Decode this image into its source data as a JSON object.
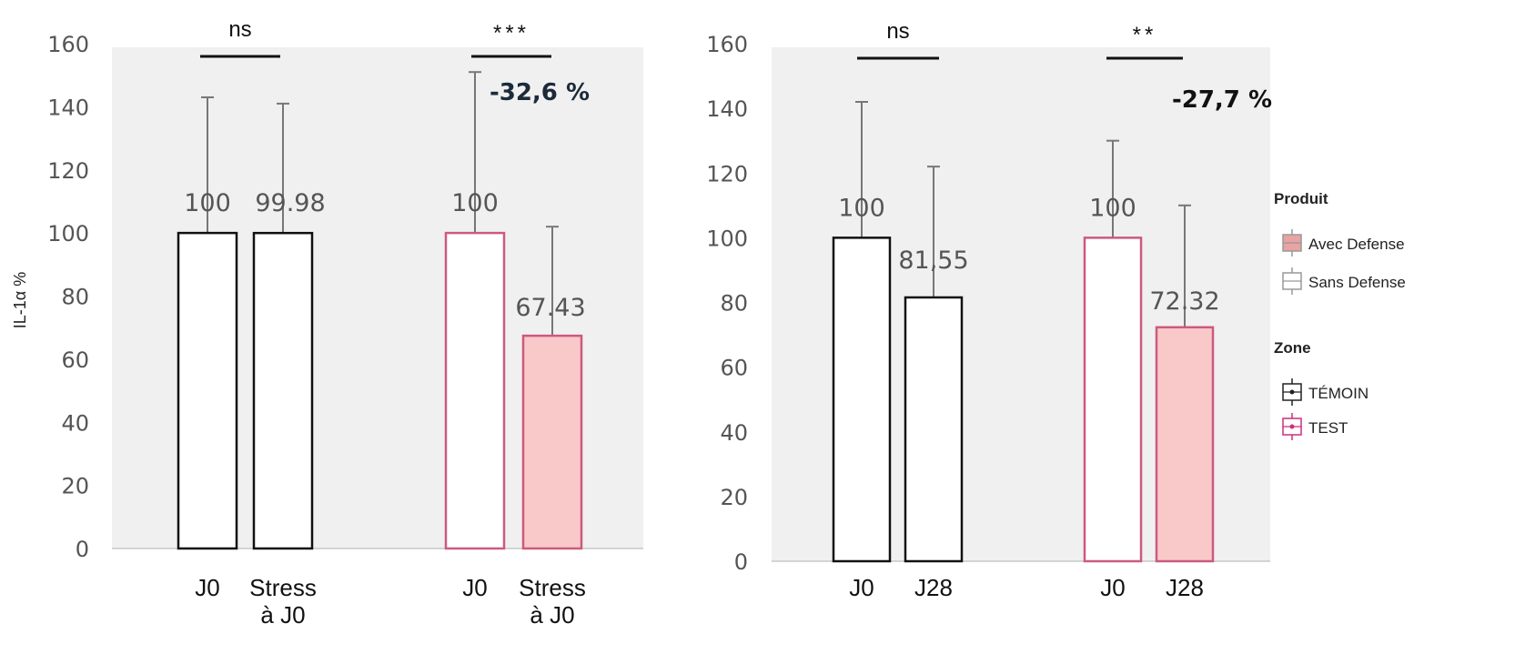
{
  "colors": {
    "panel_bg": "#f0f0f0",
    "bar_white": "#ffffff",
    "bar_pink": "#f9c9c9",
    "edge_black": "#111111",
    "edge_pink": "#cc5a7e",
    "pct_left": "#1c2a3a",
    "pct_right": "#111111"
  },
  "legend": {
    "produit_title": "Produit",
    "produit_items": [
      {
        "label": "Avec Defense",
        "color": "#e8a3a3"
      },
      {
        "label": "Sans Defense",
        "color": "#ffffff"
      }
    ],
    "zone_title": "Zone",
    "zone_items": [
      {
        "label": "TÉMOIN",
        "color": "#222222"
      },
      {
        "label": "TEST",
        "color": "#cc2f7a"
      }
    ]
  },
  "chart_data": [
    {
      "type": "bar",
      "ylabel": "IL-1α %",
      "ylim": [
        0,
        160
      ],
      "yticks": [
        0,
        20,
        40,
        60,
        80,
        100,
        120,
        140,
        160
      ],
      "grid": false,
      "groups": [
        {
          "categories": [
            "J0",
            "Stress\nà J0"
          ],
          "values": [
            100,
            99.98
          ],
          "value_labels": [
            "100",
            "99.98"
          ],
          "error_upper": [
            143,
            141
          ],
          "fills": [
            "white",
            "white"
          ],
          "edges": [
            "black",
            "black"
          ],
          "significance": "ns",
          "change": ""
        },
        {
          "categories": [
            "J0",
            "Stress\nà J0"
          ],
          "values": [
            100,
            67.43
          ],
          "value_labels": [
            "100",
            "67.43"
          ],
          "error_upper": [
            151,
            102
          ],
          "fills": [
            "white",
            "pink"
          ],
          "edges": [
            "pink",
            "pink"
          ],
          "significance": "***",
          "change": "-32,6 %"
        }
      ]
    },
    {
      "type": "bar",
      "ylim": [
        0,
        160
      ],
      "yticks": [
        0,
        20,
        40,
        60,
        80,
        100,
        120,
        140,
        160
      ],
      "grid": false,
      "groups": [
        {
          "categories": [
            "J0",
            "J28"
          ],
          "values": [
            100,
            81.55
          ],
          "value_labels": [
            "100",
            "81,55"
          ],
          "error_upper": [
            142,
            122
          ],
          "fills": [
            "white",
            "white"
          ],
          "edges": [
            "black",
            "black"
          ],
          "significance": "ns",
          "change": ""
        },
        {
          "categories": [
            "J0",
            "J28"
          ],
          "values": [
            100,
            72.32
          ],
          "value_labels": [
            "100",
            "72.32"
          ],
          "error_upper": [
            130,
            110
          ],
          "fills": [
            "white",
            "pink"
          ],
          "edges": [
            "pink",
            "pink"
          ],
          "significance": "**",
          "change": "-27,7 %"
        }
      ]
    }
  ]
}
